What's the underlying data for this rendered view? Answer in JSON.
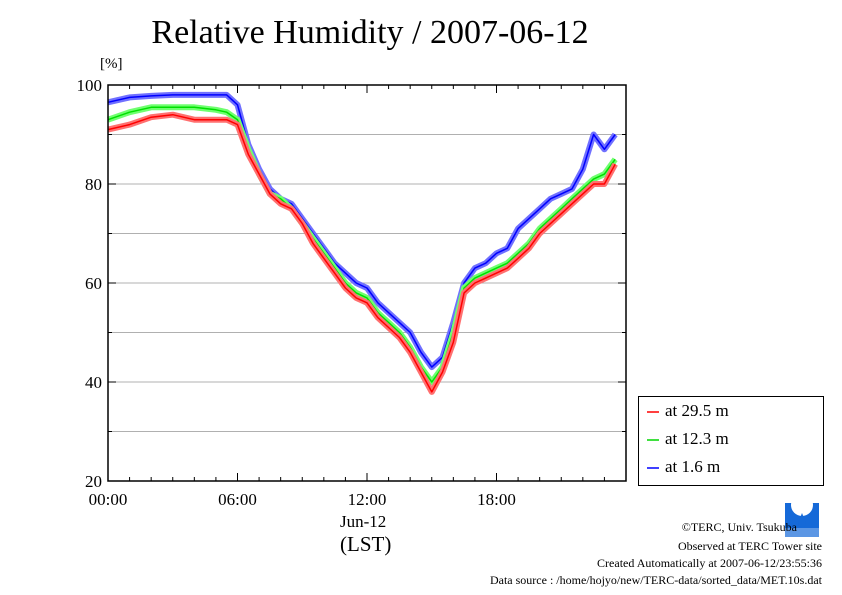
{
  "chart_data": {
    "type": "line",
    "title": "Relative Humidity / 2007-06-12",
    "ylabel": "[%]",
    "xlabel": "Jun-12",
    "xlabel2": "(LST)",
    "ylim": [
      20,
      100
    ],
    "xlim": [
      0,
      24
    ],
    "yticks": [
      20,
      40,
      60,
      80,
      100
    ],
    "ytick_labels": [
      "20",
      "40",
      "60",
      "80",
      "100"
    ],
    "xticks": [
      0,
      6,
      12,
      18
    ],
    "xtick_labels": [
      "00:00",
      "06:00",
      "12:00",
      "18:00"
    ],
    "grid": true,
    "legend_position": "right-bottom-outside",
    "x": [
      0,
      1,
      2,
      3,
      4,
      5,
      5.5,
      6,
      6.5,
      7,
      7.5,
      8,
      8.5,
      9,
      9.5,
      10,
      10.5,
      11,
      11.5,
      12,
      12.5,
      13,
      13.5,
      14,
      14.5,
      15,
      15.5,
      16,
      16.5,
      17,
      17.5,
      18,
      18.5,
      19,
      19.5,
      20,
      20.5,
      21,
      21.5,
      22,
      22.5,
      23,
      23.5
    ],
    "series": [
      {
        "name": "at 29.5 m",
        "color": "#ff0000",
        "values": [
          91,
          92,
          93.5,
          94,
          93,
          93,
          93,
          92,
          86,
          82,
          78,
          76,
          75,
          72,
          68,
          65,
          62,
          59,
          57,
          56,
          53,
          51,
          49,
          46,
          42,
          38,
          42,
          48,
          58,
          60,
          61,
          62,
          63,
          65,
          67,
          70,
          72,
          74,
          76,
          78,
          80,
          80,
          84
        ]
      },
      {
        "name": "at 12.3 m",
        "color": "#00e000",
        "values": [
          93,
          94.5,
          95.5,
          95.5,
          95.5,
          95,
          94.5,
          93,
          87,
          82,
          78,
          77,
          75,
          72,
          69,
          66,
          63,
          60,
          58,
          57,
          54,
          52,
          50,
          47,
          43,
          40,
          43,
          50,
          59,
          61,
          62,
          63,
          64,
          66,
          68,
          71,
          73,
          75,
          77,
          79,
          81,
          82,
          85
        ]
      },
      {
        "name": "at 1.6 m",
        "color": "#0000ff",
        "values": [
          96.5,
          97.5,
          97.8,
          98,
          98,
          98,
          98,
          96,
          88,
          83,
          79,
          77,
          76,
          73,
          70,
          67,
          64,
          62,
          60,
          59,
          56,
          54,
          52,
          50,
          46,
          43,
          45,
          52,
          60,
          63,
          64,
          66,
          67,
          71,
          73,
          75,
          77,
          78,
          79,
          83,
          90,
          87,
          90
        ]
      }
    ]
  },
  "footer": {
    "copyright": "©TERC, Univ. Tsukuba",
    "site": "Observed at TERC Tower site",
    "created": "Created Automatically at 2007-06-12/23:55:36",
    "source": "Data source : /home/hojyo/new/TERC-data/sorted_data/MET.10s.dat",
    "logo_text": "TERC"
  }
}
